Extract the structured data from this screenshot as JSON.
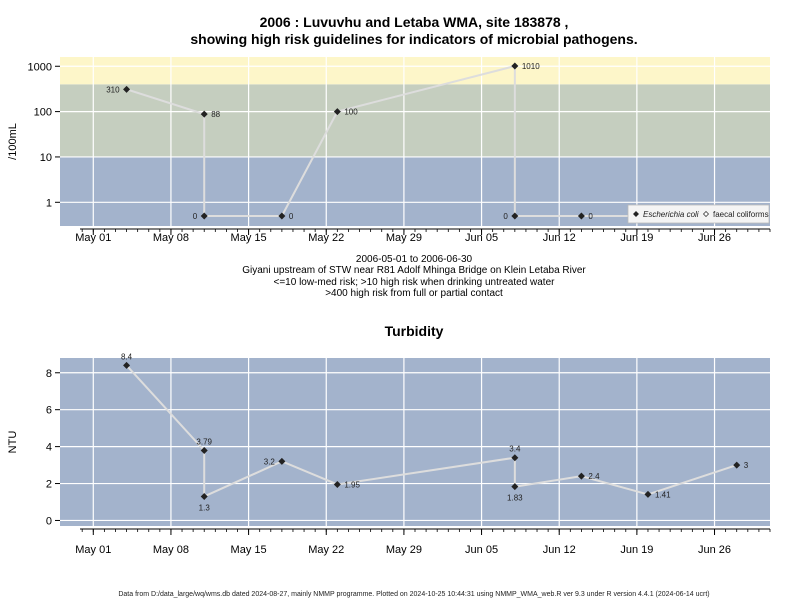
{
  "page": {
    "title_line1": "2006 : Luvuvhu and Letaba WMA, site 183878 ,",
    "title_line2": "showing high risk guidelines for indicators of microbial pathogens.",
    "caption": [
      "2006-05-01 to 2006-06-30",
      "Giyani upstream of STW near R81 Adolf Mhinga Bridge on Klein Letaba River",
      "<=10 low-med risk; >10 high risk when drinking untreated water",
      ">400 high risk from full or partial contact"
    ],
    "footer": "Data from D:/data_large/wq/wms.db dated 2024-08-27, mainly NMMP programme. Plotted on 2024-10-25 10:44:31 using NMMP_WMA_web.R ver 9.3 under R version 4.4.1 (2024-06-14 ucrt)"
  },
  "chart_data": [
    {
      "type": "line",
      "title": "",
      "ylabel": "/100mL",
      "y_scale": "log",
      "ylim": [
        0.3,
        1600
      ],
      "y_ticks": [
        1,
        10,
        100,
        1000
      ],
      "y_tick_labels": [
        "1",
        "10",
        "100",
        "1000"
      ],
      "x_ticks": [
        "2006-05-01",
        "2006-05-08",
        "2006-05-15",
        "2006-05-22",
        "2006-05-29",
        "2006-06-05",
        "2006-06-12",
        "2006-06-19",
        "2006-06-26"
      ],
      "x_tick_labels": [
        "May 01",
        "May 08",
        "May 15",
        "May 22",
        "May 29",
        "Jun 05",
        "Jun 12",
        "Jun 19",
        "Jun 26"
      ],
      "xlim": [
        "2006-04-28",
        "2006-07-01"
      ],
      "risk_bands": [
        {
          "label": "<=10 low-med risk",
          "from": 0.3,
          "to": 10,
          "color": "#a3b3cc"
        },
        {
          "label": ">10 high risk when drinking untreated water",
          "from": 10,
          "to": 400,
          "color": "#c5cebf"
        },
        {
          "label": ">400 high risk from full or partial contact",
          "from": 400,
          "to": 1600,
          "color": "#fdf6c9"
        }
      ],
      "grid": true,
      "legend_position": "bottom-right",
      "line_color": "#dddddd",
      "points": [
        {
          "x": "2006-05-04",
          "y": 310,
          "label": "310",
          "label_side": "left"
        },
        {
          "x": "2006-05-11",
          "y": 88,
          "label": "88",
          "label_side": "right"
        },
        {
          "x": "2006-05-11",
          "y": 0,
          "label": "0",
          "label_side": "left"
        },
        {
          "x": "2006-05-18",
          "y": 0,
          "label": "0",
          "label_side": "right"
        },
        {
          "x": "2006-05-23",
          "y": 100,
          "label": "100",
          "label_side": "right"
        },
        {
          "x": "2006-06-08",
          "y": 1010,
          "label": "1010",
          "label_side": "right"
        },
        {
          "x": "2006-06-08",
          "y": 0,
          "label": "0",
          "label_side": "left"
        },
        {
          "x": "2006-06-14",
          "y": 0,
          "label": "0",
          "label_side": "right"
        },
        {
          "x": "2006-06-20",
          "y": 0,
          "label": "0",
          "label_side": "right"
        },
        {
          "x": "2006-06-28",
          "y": 0,
          "label": "0",
          "label_side": "right"
        }
      ],
      "legend": [
        {
          "name": "Escherichia coli",
          "marker": "filled-diamond",
          "italic": true
        },
        {
          "name": "faecal coliforms",
          "marker": "open-diamond",
          "italic": false
        }
      ]
    },
    {
      "type": "line",
      "title": "Turbidity",
      "ylabel": "NTU",
      "ylim": [
        -0.3,
        8.8
      ],
      "y_ticks": [
        0,
        2,
        4,
        6,
        8
      ],
      "y_tick_labels": [
        "0",
        "2",
        "4",
        "6",
        "8"
      ],
      "x_ticks": [
        "2006-05-01",
        "2006-05-08",
        "2006-05-15",
        "2006-05-22",
        "2006-05-29",
        "2006-06-05",
        "2006-06-12",
        "2006-06-19",
        "2006-06-26"
      ],
      "x_tick_labels": [
        "May 01",
        "May 08",
        "May 15",
        "May 22",
        "May 29",
        "Jun 05",
        "Jun 12",
        "Jun 19",
        "Jun 26"
      ],
      "xlim": [
        "2006-04-28",
        "2006-07-01"
      ],
      "background": "#a3b3cc",
      "grid": true,
      "line_color": "#dddddd",
      "points": [
        {
          "x": "2006-05-04",
          "y": 8.4,
          "label": "8.4",
          "label_side": "top"
        },
        {
          "x": "2006-05-11",
          "y": 3.79,
          "label": "3.79",
          "label_side": "top"
        },
        {
          "x": "2006-05-11",
          "y": 1.3,
          "label": "1.3",
          "label_side": "bottom"
        },
        {
          "x": "2006-05-18",
          "y": 3.2,
          "label": "3.2",
          "label_side": "left"
        },
        {
          "x": "2006-05-23",
          "y": 1.95,
          "label": "1.95",
          "label_side": "right"
        },
        {
          "x": "2006-06-08",
          "y": 3.4,
          "label": "3.4",
          "label_side": "top"
        },
        {
          "x": "2006-06-08",
          "y": 1.83,
          "label": "1.83",
          "label_side": "bottom"
        },
        {
          "x": "2006-06-14",
          "y": 2.4,
          "label": "2.4",
          "label_side": "right"
        },
        {
          "x": "2006-06-20",
          "y": 1.41,
          "label": "1.41",
          "label_side": "right"
        },
        {
          "x": "2006-06-28",
          "y": 3.0,
          "label": "3",
          "label_side": "right"
        }
      ]
    }
  ]
}
